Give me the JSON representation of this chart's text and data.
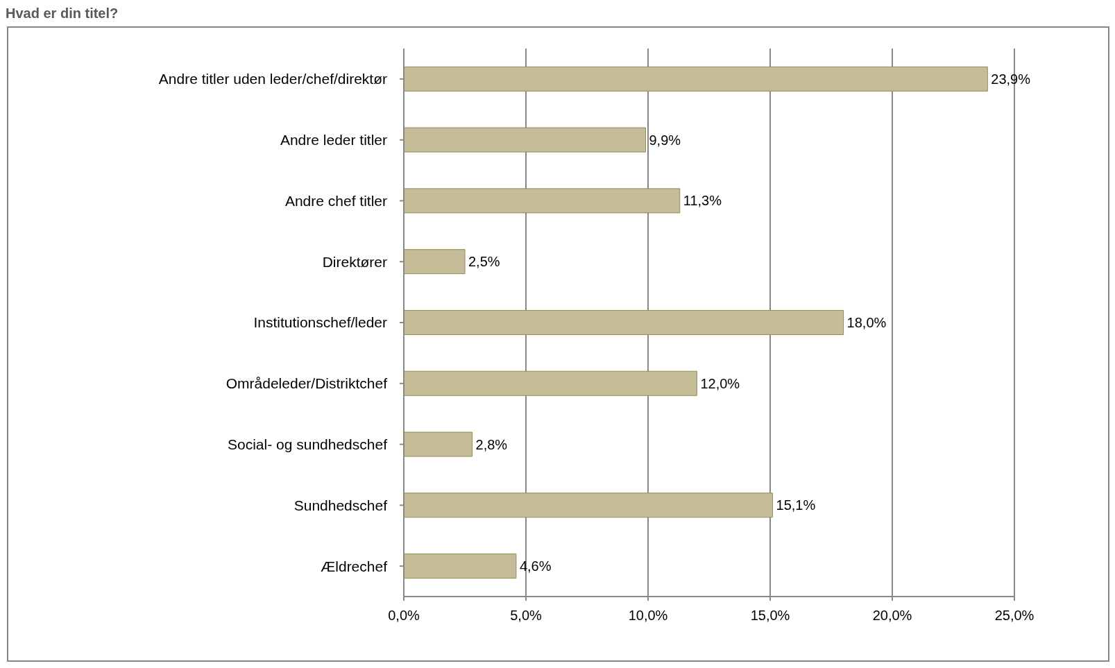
{
  "chart_data": {
    "type": "bar",
    "orientation": "horizontal",
    "title": "Hvad er din titel?",
    "categories": [
      "Andre titler uden leder/chef/direktør",
      "Andre leder titler",
      "Andre chef titler",
      "Direktører",
      "Institutionschef/leder",
      "Områdeleder/Distriktchef",
      "Social- og sundhedschef",
      "Sundhedschef",
      "Ældrechef"
    ],
    "values": [
      23.9,
      9.9,
      11.3,
      2.5,
      18.0,
      12.0,
      2.8,
      15.1,
      4.6
    ],
    "value_labels": [
      "23,9%",
      "9,9%",
      "11,3%",
      "2,5%",
      "18,0%",
      "12,0%",
      "2,8%",
      "15,1%",
      "4,6%"
    ],
    "color": "#c4bd97",
    "xlim": [
      0,
      25
    ],
    "xticks": [
      {
        "value": 0,
        "label": "0,0%"
      },
      {
        "value": 5,
        "label": "5,0%"
      },
      {
        "value": 10,
        "label": "10,0%"
      },
      {
        "value": 15,
        "label": "15,0%"
      },
      {
        "value": 20,
        "label": "20,0%"
      },
      {
        "value": 25,
        "label": "25,0%"
      }
    ],
    "grid": "x",
    "legend": false
  }
}
